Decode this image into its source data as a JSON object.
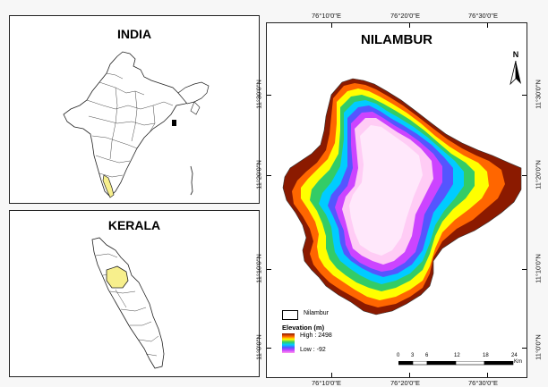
{
  "india_panel": {
    "title": "INDIA"
  },
  "kerala_panel": {
    "title": "KERALA"
  },
  "main_map": {
    "title": "NILAMBUR",
    "top_coords": [
      "76°10'0\"E",
      "76°20'0\"E",
      "76°30'0\"E"
    ],
    "bottom_coords": [
      "76°10'0\"E",
      "76°20'0\"E",
      "76°30'0\"E"
    ],
    "left_coords": [
      "11°30'0\"N",
      "11°20'0\"N",
      "11°10'0\"N",
      "11°0'0\"N"
    ],
    "right_coords": [
      "11°30'0\"N",
      "11°20'0\"N",
      "11°10'0\"N",
      "11°0'0\"N"
    ]
  },
  "north_arrow": {
    "label": "N"
  },
  "legend": {
    "boundary_label": "Nilambur",
    "elevation_title": "Elevation (m)",
    "high_label": "High : 2498",
    "low_label": "Low : -92"
  },
  "scale_bar": {
    "numbers": [
      "0",
      "3",
      "6",
      "12",
      "18",
      "24"
    ],
    "unit": "Km",
    "fractions": [
      0,
      0.125,
      0.25,
      0.5,
      0.75,
      1
    ]
  },
  "colors": {
    "highlight_yellow": "#f7ef8c",
    "elevation_ramp": [
      "#8b1a00",
      "#ff6600",
      "#ffff00",
      "#33cc66",
      "#00ccff",
      "#5555ff",
      "#cc44ff",
      "#ffccf5"
    ]
  }
}
